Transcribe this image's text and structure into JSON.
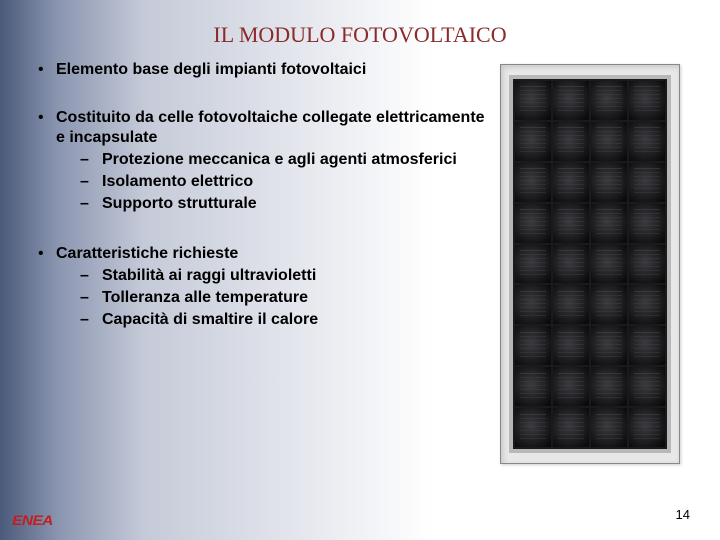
{
  "title": "IL MODULO FOTOVOLTAICO",
  "bullets": [
    {
      "text": "Elemento base degli impianti fotovoltaici",
      "subs": []
    },
    {
      "text": "Costituito da celle fotovoltaiche collegate elettricamente e incapsulate",
      "subs": [
        "Protezione meccanica e agli agenti atmosferici",
        "Isolamento elettrico",
        "Supporto strutturale"
      ]
    },
    {
      "text": "Caratteristiche richieste",
      "subs": [
        "Stabilità ai raggi ultravioletti",
        "Tolleranza alle temperature",
        "Capacità di smaltire il calore"
      ]
    }
  ],
  "page_number": "14",
  "logo_text": "ENEA",
  "colors": {
    "title": "#8b2a2a",
    "logo": "#c41e1e",
    "body_text": "#000000",
    "gradient_left": "#4a5a7a",
    "gradient_right": "#ffffff",
    "panel_dark": "#1a1a1a",
    "panel_frame": "#b8b8b8",
    "cell_dark": "#0a0a0c"
  },
  "panel": {
    "cols": 4,
    "rows": 9
  },
  "dash": "–",
  "bullet_char": "•"
}
